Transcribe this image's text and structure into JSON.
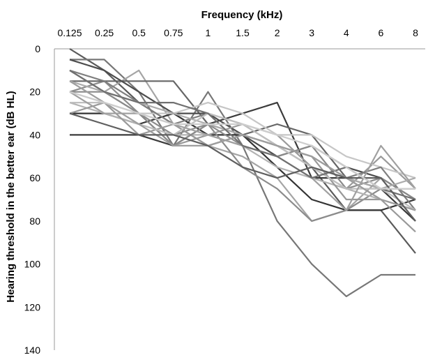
{
  "chart_data": {
    "type": "line",
    "xlabel": "Frequency (kHz)",
    "ylabel": "Hearing threshold in the better ear (dB HL)",
    "x_axis_position": "top",
    "y_reversed": true,
    "ylim": [
      0,
      140
    ],
    "y_ticks": [
      0,
      20,
      40,
      60,
      80,
      100,
      120,
      140
    ],
    "categories": [
      "0.125",
      "0.25",
      "0.5",
      "0.75",
      "1",
      "1.5",
      "2",
      "3",
      "4",
      "6",
      "8"
    ],
    "grid": false,
    "legend": "none",
    "series": [
      {
        "values": [
          0,
          10,
          25,
          35,
          45,
          40,
          45,
          55,
          75,
          75,
          95
        ],
        "color": "#5a5a5a"
      },
      {
        "values": [
          5,
          5,
          20,
          45,
          20,
          45,
          80,
          100,
          115,
          105,
          105
        ],
        "color": "#777777"
      },
      {
        "values": [
          10,
          20,
          10,
          35,
          45,
          50,
          60,
          80,
          75,
          60,
          80
        ],
        "color": "#a5a5a5"
      },
      {
        "values": [
          30,
          30,
          35,
          30,
          40,
          40,
          55,
          70,
          75,
          75,
          70
        ],
        "color": "#333333"
      },
      {
        "values": [
          40,
          40,
          40,
          45,
          35,
          30,
          25,
          60,
          60,
          65,
          80
        ],
        "color": "#3b3b3b"
      },
      {
        "values": [
          20,
          15,
          30,
          40,
          35,
          55,
          65,
          80,
          75,
          65,
          65
        ],
        "color": "#8c8c8c"
      },
      {
        "values": [
          15,
          15,
          15,
          15,
          35,
          40,
          35,
          40,
          60,
          70,
          75
        ],
        "color": "#666666"
      },
      {
        "values": [
          5,
          10,
          20,
          30,
          30,
          40,
          50,
          45,
          55,
          60,
          70
        ],
        "color": "#4d4d4d"
      },
      {
        "values": [
          10,
          20,
          30,
          45,
          40,
          35,
          40,
          55,
          65,
          50,
          65
        ],
        "color": "#9a9a9a"
      },
      {
        "values": [
          20,
          25,
          30,
          30,
          25,
          30,
          40,
          40,
          50,
          55,
          60
        ],
        "color": "#c6c6c6"
      },
      {
        "values": [
          25,
          30,
          35,
          40,
          40,
          45,
          55,
          60,
          65,
          70,
          75
        ],
        "color": "#b3b3b3"
      },
      {
        "values": [
          30,
          25,
          40,
          35,
          45,
          40,
          45,
          50,
          70,
          70,
          85
        ],
        "color": "#999999"
      },
      {
        "values": [
          10,
          15,
          25,
          35,
          30,
          35,
          45,
          50,
          60,
          55,
          75
        ],
        "color": "#7f7f7f"
      },
      {
        "values": [
          20,
          20,
          30,
          45,
          35,
          45,
          50,
          45,
          65,
          60,
          70
        ],
        "color": "#8a8a8a"
      },
      {
        "values": [
          15,
          20,
          25,
          30,
          35,
          40,
          45,
          55,
          60,
          65,
          60
        ],
        "color": "#acacac"
      },
      {
        "values": [
          25,
          25,
          35,
          40,
          30,
          35,
          45,
          55,
          65,
          65,
          75
        ],
        "color": "#bfbfbf"
      },
      {
        "values": [
          20,
          30,
          30,
          35,
          40,
          45,
          50,
          60,
          75,
          45,
          65
        ],
        "color": "#a0a0a0"
      },
      {
        "values": [
          10,
          20,
          25,
          25,
          30,
          45,
          50,
          60,
          55,
          65,
          70
        ],
        "color": "#707070"
      },
      {
        "values": [
          15,
          25,
          35,
          45,
          45,
          40,
          45,
          50,
          60,
          70,
          75
        ],
        "color": "#9e9e9e"
      },
      {
        "values": [
          30,
          35,
          40,
          40,
          45,
          55,
          60,
          55,
          60,
          60,
          80
        ],
        "color": "#5f5f5f"
      },
      {
        "values": [
          20,
          25,
          30,
          35,
          35,
          35,
          40,
          45,
          55,
          65,
          65
        ],
        "color": "#cdcdcd"
      }
    ]
  }
}
